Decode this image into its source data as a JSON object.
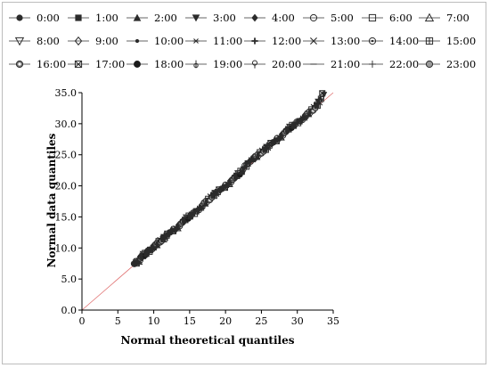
{
  "chart_data": {
    "type": "scatter",
    "title": "",
    "xlabel": "Normal theoretical quantiles",
    "ylabel": "Normal data quantiles",
    "xlim": [
      0,
      35
    ],
    "ylim": [
      0,
      35
    ],
    "x_ticks": [
      "0",
      "5",
      "10",
      "15",
      "20",
      "25",
      "30",
      "35"
    ],
    "y_ticks": [
      "0.0",
      "5.0",
      "10.0",
      "15.0",
      "20.0",
      "25.0",
      "30.0",
      "35.0"
    ],
    "reference_line": {
      "from": [
        0,
        0
      ],
      "to": [
        35,
        35
      ],
      "color": "#e07070"
    },
    "legend_position": "top",
    "grid": false,
    "series": [
      {
        "name": "0:00",
        "marker": "circle-filled"
      },
      {
        "name": "1:00",
        "marker": "square-filled"
      },
      {
        "name": "2:00",
        "marker": "triangle-up-filled"
      },
      {
        "name": "3:00",
        "marker": "triangle-down-filled"
      },
      {
        "name": "4:00",
        "marker": "diamond-filled"
      },
      {
        "name": "5:00",
        "marker": "circle-open"
      },
      {
        "name": "6:00",
        "marker": "square-open"
      },
      {
        "name": "7:00",
        "marker": "triangle-up-open"
      },
      {
        "name": "8:00",
        "marker": "triangle-down-open"
      },
      {
        "name": "9:00",
        "marker": "diamond-open"
      },
      {
        "name": "10:00",
        "marker": "dot-small"
      },
      {
        "name": "11:00",
        "marker": "star"
      },
      {
        "name": "12:00",
        "marker": "plus-bold"
      },
      {
        "name": "13:00",
        "marker": "x-cross"
      },
      {
        "name": "14:00",
        "marker": "circle-dot"
      },
      {
        "name": "15:00",
        "marker": "square-cross"
      },
      {
        "name": "16:00",
        "marker": "circle-crossed"
      },
      {
        "name": "17:00",
        "marker": "square-x"
      },
      {
        "name": "18:00",
        "marker": "circle-filled-large"
      },
      {
        "name": "19:00",
        "marker": "flag"
      },
      {
        "name": "20:00",
        "marker": "pin"
      },
      {
        "name": "21:00",
        "marker": "dash"
      },
      {
        "name": "22:00",
        "marker": "plus-thin"
      },
      {
        "name": "23:00",
        "marker": "circle-half"
      }
    ],
    "points_x": [
      7.3,
      7.5,
      7.6,
      7.8,
      8.0,
      8.1,
      8.3,
      8.5,
      8.7,
      8.9,
      9.1,
      9.3,
      9.5,
      9.7,
      9.9,
      10.1,
      10.4,
      10.6,
      10.8,
      11.0,
      11.3,
      11.5,
      11.8,
      12.0,
      12.3,
      12.6,
      12.9,
      13.2,
      13.5,
      13.8,
      14.1,
      14.4,
      14.7,
      15.0,
      15.3,
      15.6,
      15.9,
      16.2,
      16.5,
      16.8,
      17.1,
      17.4,
      17.7,
      18.0,
      18.3,
      18.6,
      18.9,
      19.2,
      19.5,
      19.8,
      20.1,
      20.4,
      20.7,
      21.0,
      21.3,
      21.6,
      21.9,
      22.2,
      22.5,
      22.8,
      23.1,
      23.4,
      23.7,
      24.0,
      24.3,
      24.6,
      24.9,
      25.2,
      25.5,
      25.8,
      26.1,
      26.4,
      26.7,
      27.0,
      27.3,
      27.6,
      27.9,
      28.2,
      28.5,
      28.8,
      29.1,
      29.4,
      29.7,
      30.0,
      30.3,
      30.6,
      30.9,
      31.2,
      31.5,
      31.8,
      32.1,
      32.4,
      32.7,
      33.0,
      33.3,
      33.6
    ],
    "points_y": [
      7.4,
      7.6,
      7.8,
      7.9,
      8.1,
      8.3,
      8.5,
      8.7,
      8.9,
      9.1,
      9.3,
      9.5,
      9.7,
      9.9,
      10.1,
      10.3,
      10.5,
      10.8,
      11.0,
      11.2,
      11.5,
      11.7,
      12.0,
      12.2,
      12.5,
      12.8,
      13.0,
      13.3,
      13.6,
      13.9,
      14.2,
      14.5,
      14.8,
      15.1,
      15.4,
      15.6,
      15.9,
      16.2,
      16.5,
      16.8,
      17.2,
      17.5,
      17.8,
      18.2,
      18.5,
      18.8,
      19.0,
      19.3,
      19.5,
      19.8,
      20.1,
      20.4,
      20.7,
      21.0,
      21.3,
      21.6,
      21.9,
      22.3,
      22.7,
      23.2,
      23.6,
      24.0,
      24.3,
      24.5,
      24.7,
      25.0,
      25.3,
      25.6,
      25.9,
      26.2,
      26.5,
      26.8,
      27.0,
      27.3,
      27.6,
      27.9,
      28.2,
      28.5,
      28.8,
      29.1,
      29.4,
      29.7,
      29.9,
      30.2,
      30.4,
      30.7,
      31.0,
      31.3,
      31.6,
      31.9,
      32.2,
      32.6,
      33.0,
      33.5,
      34.0,
      34.8
    ]
  }
}
